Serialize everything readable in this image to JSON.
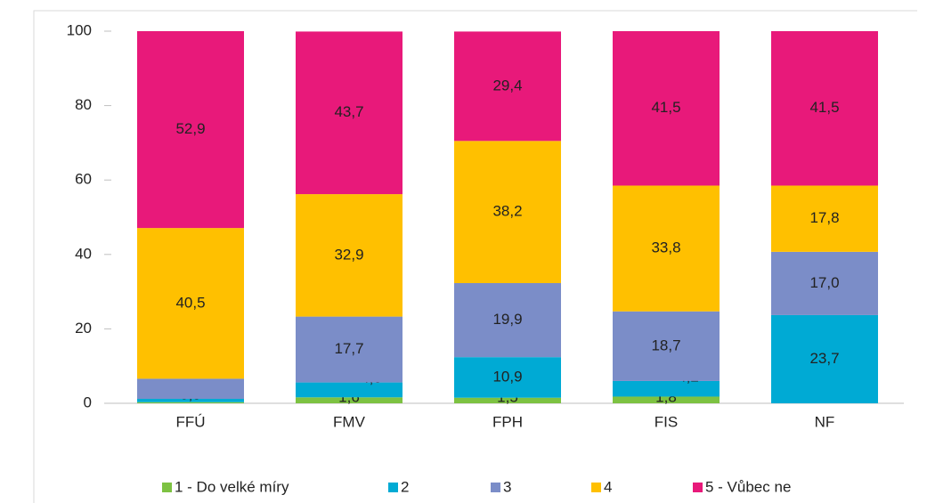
{
  "chart_data": {
    "type": "stacked_bar",
    "categories": [
      "FFÚ",
      "FMV",
      "FPH",
      "FIS",
      "NF"
    ],
    "series": [
      {
        "name": "1 - Do velké míry",
        "color": "#7dc242",
        "values": [
          0.3,
          1.6,
          1.5,
          1.8,
          0
        ],
        "value_labels": [
          null,
          "1,6",
          "1,5",
          "1,8",
          null
        ]
      },
      {
        "name": "2",
        "color": "#00aad4",
        "values": [
          0.9,
          4.0,
          10.9,
          4.2,
          23.7
        ],
        "value_labels": [
          "0,9",
          "4,0",
          "10,9",
          "4,2",
          "23,7"
        ]
      },
      {
        "name": "3",
        "color": "#7b8dc8",
        "values": [
          5.4,
          17.7,
          19.9,
          18.7,
          17.0
        ],
        "value_labels": [
          null,
          "17,7",
          "19,9",
          "18,7",
          "17,0"
        ]
      },
      {
        "name": "4",
        "color": "#ffc000",
        "values": [
          40.5,
          32.9,
          38.2,
          33.8,
          17.8
        ],
        "value_labels": [
          "40,5",
          "32,9",
          "38,2",
          "33,8",
          "17,8"
        ]
      },
      {
        "name": "5 - Vůbec ne",
        "color": "#e8197a",
        "values": [
          52.9,
          43.7,
          29.4,
          41.5,
          41.5
        ],
        "value_labels": [
          "52,9",
          "43,7",
          "29,4",
          "41,5",
          "41,5"
        ]
      }
    ],
    "ylim": [
      0,
      100
    ],
    "yticks": [
      0,
      20,
      40,
      60,
      80,
      100
    ],
    "legend": "bottom"
  }
}
